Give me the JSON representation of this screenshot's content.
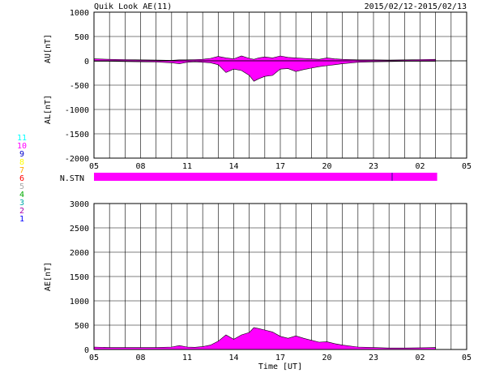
{
  "chart_data": [
    {
      "type": "area",
      "title": "Quik Look AE(11)",
      "date_range": "2015/02/12-2015/02/13",
      "ylabel_upper": "AU[nT]",
      "ylabel_lower": "AL[nT]",
      "ylim": [
        -2000,
        1000
      ],
      "yticks": [
        "1000",
        "500",
        "0",
        "-500",
        "-1000",
        "-1500",
        "-2000"
      ],
      "ytick_values": [
        1000,
        500,
        0,
        -500,
        -1000,
        -1500,
        -2000
      ],
      "xlim_hours": [
        5,
        29
      ],
      "xticks": [
        "05",
        "08",
        "11",
        "14",
        "17",
        "20",
        "23",
        "02",
        "05"
      ],
      "xtick_hours": [
        5,
        8,
        11,
        14,
        17,
        20,
        23,
        26,
        29
      ],
      "grid": true,
      "fill_color": "#ff00ff",
      "x": [
        5,
        6,
        7,
        8,
        9,
        10,
        10.5,
        11,
        11.5,
        12,
        12.5,
        13,
        13.5,
        14,
        14.5,
        15,
        15.3,
        15.6,
        16,
        16.5,
        17,
        17.5,
        18,
        18.5,
        19,
        19.5,
        20,
        20.5,
        21,
        22,
        23,
        24,
        25,
        26,
        27
      ],
      "au": [
        40,
        30,
        25,
        20,
        15,
        10,
        20,
        20,
        25,
        30,
        50,
        90,
        60,
        40,
        100,
        50,
        30,
        60,
        80,
        60,
        100,
        70,
        60,
        50,
        40,
        30,
        60,
        40,
        30,
        20,
        20,
        15,
        20,
        25,
        30
      ],
      "al": [
        -10,
        -10,
        -15,
        -20,
        -25,
        -40,
        -60,
        -30,
        -20,
        -30,
        -40,
        -80,
        -240,
        -170,
        -200,
        -300,
        -420,
        -370,
        -320,
        -300,
        -170,
        -160,
        -220,
        -180,
        -150,
        -120,
        -100,
        -80,
        -60,
        -30,
        -20,
        -15,
        -10,
        -10,
        -10
      ]
    },
    {
      "type": "bar",
      "label": "N.STN",
      "legend": [
        "11",
        "10",
        "9",
        "8",
        "7",
        "6",
        "5",
        "4",
        "3",
        "2",
        "1"
      ],
      "legend_colors": [
        "#00ffff",
        "#ff00ff",
        "#0000cc",
        "#ffff00",
        "#ffaa00",
        "#ff0000",
        "#aaaaaa",
        "#00aa00",
        "#00aaaa",
        "#aa00aa",
        "#0000ff"
      ],
      "x_start": 5,
      "x_end": 27.1,
      "stations": 10,
      "marker_hour": 24.2,
      "fill_color": "#ff00ff"
    },
    {
      "type": "area",
      "ylabel": "AE[nT]",
      "xlabel": "Time [UT]",
      "ylim": [
        0,
        3000
      ],
      "yticks": [
        "3000",
        "2500",
        "2000",
        "1500",
        "1000",
        "500",
        "0"
      ],
      "ytick_values": [
        3000,
        2500,
        2000,
        1500,
        1000,
        500,
        0
      ],
      "xlim_hours": [
        5,
        29
      ],
      "xticks": [
        "05",
        "08",
        "11",
        "14",
        "17",
        "20",
        "23",
        "02",
        "05"
      ],
      "xtick_hours": [
        5,
        8,
        11,
        14,
        17,
        20,
        23,
        26,
        29
      ],
      "grid": true,
      "fill_color": "#ff00ff",
      "x": [
        5,
        6,
        7,
        8,
        9,
        10,
        10.5,
        11,
        11.5,
        12,
        12.5,
        13,
        13.5,
        14,
        14.5,
        15,
        15.3,
        15.6,
        16,
        16.5,
        17,
        17.5,
        18,
        18.5,
        19,
        19.5,
        20,
        20.5,
        21,
        22,
        23,
        24,
        25,
        26,
        27
      ],
      "values": [
        50,
        40,
        40,
        40,
        40,
        50,
        80,
        50,
        45,
        60,
        90,
        170,
        300,
        210,
        300,
        350,
        450,
        430,
        400,
        360,
        270,
        230,
        280,
        230,
        190,
        150,
        160,
        120,
        90,
        50,
        40,
        30,
        30,
        35,
        40
      ]
    }
  ]
}
